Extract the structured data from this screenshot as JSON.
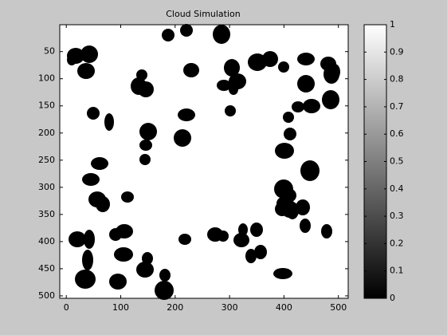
{
  "chart_data": {
    "type": "image",
    "title": "Cloud Simulation",
    "xlim": [
      -12,
      518
    ],
    "xticks": [
      0,
      100,
      200,
      300,
      400,
      500
    ],
    "ylim": [
      0.5,
      504.5
    ],
    "yticks": [
      50,
      100,
      150,
      200,
      250,
      300,
      350,
      400,
      450,
      500
    ],
    "y_reversed": true,
    "colormap": [
      "#000000",
      "#ffffff"
    ],
    "clim": [
      0,
      1
    ],
    "colorbar_ticks": [
      0,
      0.1,
      0.2,
      0.3,
      0.4,
      0.5,
      0.6,
      0.7,
      0.8,
      0.9,
      1
    ]
  }
}
